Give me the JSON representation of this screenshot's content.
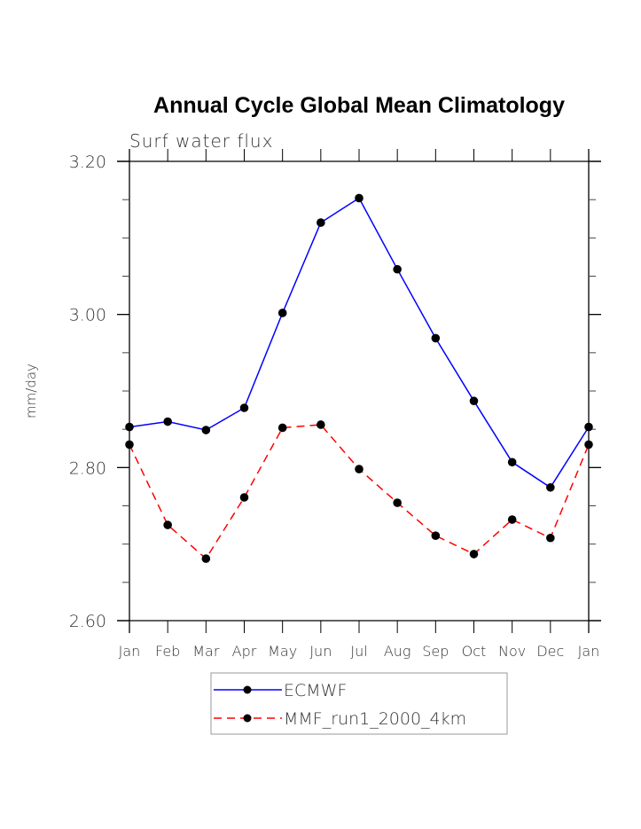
{
  "chart_data": {
    "type": "line",
    "title": "Annual Cycle Global Mean Climatology",
    "subtitle": "Surf water flux",
    "xlabel": "",
    "ylabel": "mm/day",
    "categories": [
      "Jan",
      "Feb",
      "Mar",
      "Apr",
      "May",
      "Jun",
      "Jul",
      "Aug",
      "Sep",
      "Oct",
      "Nov",
      "Dec",
      "Jan"
    ],
    "ylim": [
      2.6,
      3.2
    ],
    "yticks": [
      "2.60",
      "2.80",
      "3.00",
      "3.20"
    ],
    "ytick_values": [
      2.6,
      2.8,
      3.0,
      3.2
    ],
    "yminor_step": 0.05,
    "grid": false,
    "legend_position": "bottom-center",
    "series": [
      {
        "name": "ECMWF",
        "color": "#0000ff",
        "style": "solid",
        "marker": "filled-circle",
        "values": [
          2.853,
          2.86,
          2.849,
          2.878,
          3.002,
          3.12,
          3.152,
          3.059,
          2.969,
          2.887,
          2.807,
          2.774,
          2.853
        ]
      },
      {
        "name": "MMF_run1_2000_4km",
        "color": "#ff0000",
        "style": "dashed",
        "marker": "filled-circle",
        "values": [
          2.83,
          2.725,
          2.681,
          2.761,
          2.852,
          2.856,
          2.798,
          2.754,
          2.711,
          2.687,
          2.732,
          2.708,
          2.83
        ]
      }
    ]
  }
}
